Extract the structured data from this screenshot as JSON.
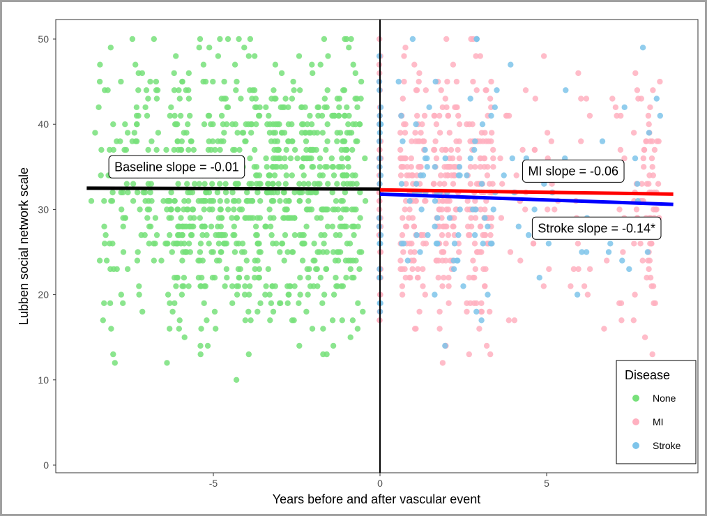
{
  "chart_data": {
    "type": "scatter",
    "title": "",
    "xlabel": "Years before and after vascular event",
    "ylabel": "Lubben social network scale",
    "xlim": [
      -9.5,
      9.5
    ],
    "ylim": [
      -1,
      52
    ],
    "x_ticks": [
      -5,
      0,
      5
    ],
    "y_ticks": [
      0,
      10,
      20,
      30,
      40,
      50
    ],
    "grid": false,
    "vline_x": 0,
    "legend": {
      "title": "Disease",
      "position": "bottom-right",
      "entries": [
        {
          "name": "None",
          "color": "#77e07a"
        },
        {
          "name": "MI",
          "color": "#ffb0c0"
        },
        {
          "name": "Stroke",
          "color": "#7ec4ea"
        }
      ]
    },
    "series": [
      {
        "name": "None",
        "color": "#77e07a",
        "x_range": [
          -8.8,
          0
        ],
        "description_of_distribution": "vertical bands at approx. yearly intervals"
      },
      {
        "name": "MI",
        "color": "#ffb0c0",
        "x_range": [
          0,
          8.8
        ]
      },
      {
        "name": "Stroke",
        "color": "#7ec4ea",
        "x_range": [
          0,
          8.8
        ]
      }
    ],
    "fit_lines": [
      {
        "name": "Baseline",
        "color": "#000000",
        "x": [
          -8.8,
          0
        ],
        "y": [
          32.5,
          32.4
        ]
      },
      {
        "name": "MI",
        "color": "#ff0000",
        "x": [
          0,
          8.8
        ],
        "y": [
          32.3,
          31.8
        ]
      },
      {
        "name": "Stroke",
        "color": "#0000ff",
        "x": [
          0,
          8.8
        ],
        "y": [
          31.8,
          30.6
        ]
      }
    ],
    "annotations": [
      {
        "text": "Baseline slope = -0.01",
        "x": -6.1,
        "y": 35.0
      },
      {
        "text": "MI slope = -0.06",
        "x": 5.8,
        "y": 34.5
      },
      {
        "text": "Stroke slope = -0.14*",
        "x": 6.5,
        "y": 27.8
      }
    ]
  }
}
